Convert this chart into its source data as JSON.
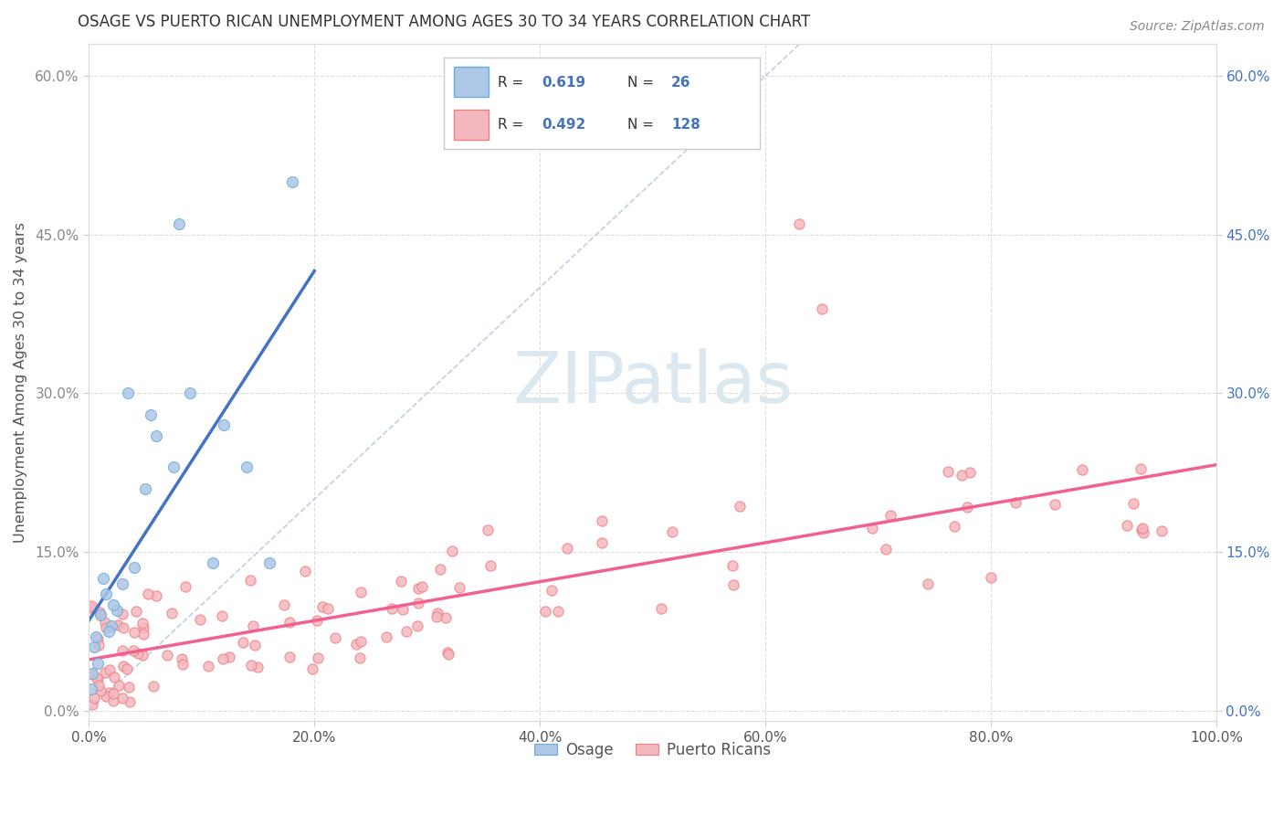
{
  "title": "OSAGE VS PUERTO RICAN UNEMPLOYMENT AMONG AGES 30 TO 34 YEARS CORRELATION CHART",
  "source": "Source: ZipAtlas.com",
  "ylabel": "Unemployment Among Ages 30 to 34 years",
  "xlim": [
    0,
    100
  ],
  "ylim": [
    -1,
    63
  ],
  "xticks": [
    0,
    20,
    40,
    60,
    80,
    100
  ],
  "yticks": [
    0,
    15,
    30,
    45,
    60
  ],
  "ytick_labels": [
    "0.0%",
    "15.0%",
    "30.0%",
    "45.0%",
    "60.0%"
  ],
  "xtick_labels": [
    "0.0%",
    "20.0%",
    "40.0%",
    "60.0%",
    "80.0%",
    "100.0%"
  ],
  "osage_R": "0.619",
  "osage_N": "26",
  "pr_R": "0.492",
  "pr_N": "128",
  "osage_fill": "#aec6e8",
  "osage_edge": "#6baed6",
  "pr_fill": "#f4b8c1",
  "pr_edge": "#f08080",
  "osage_line_color": "#4472c4",
  "pr_line_color": "#f06090",
  "diag_color": "#b0c4de",
  "watermark_color": "#dce8f0",
  "left_tick_color": "#888888",
  "right_tick_color": "#4472c4",
  "legend_text_color": "#333333",
  "legend_value_color": "#4472c4",
  "background_color": "#ffffff",
  "grid_color": "#dddddd",
  "title_color": "#333333",
  "source_color": "#888888"
}
